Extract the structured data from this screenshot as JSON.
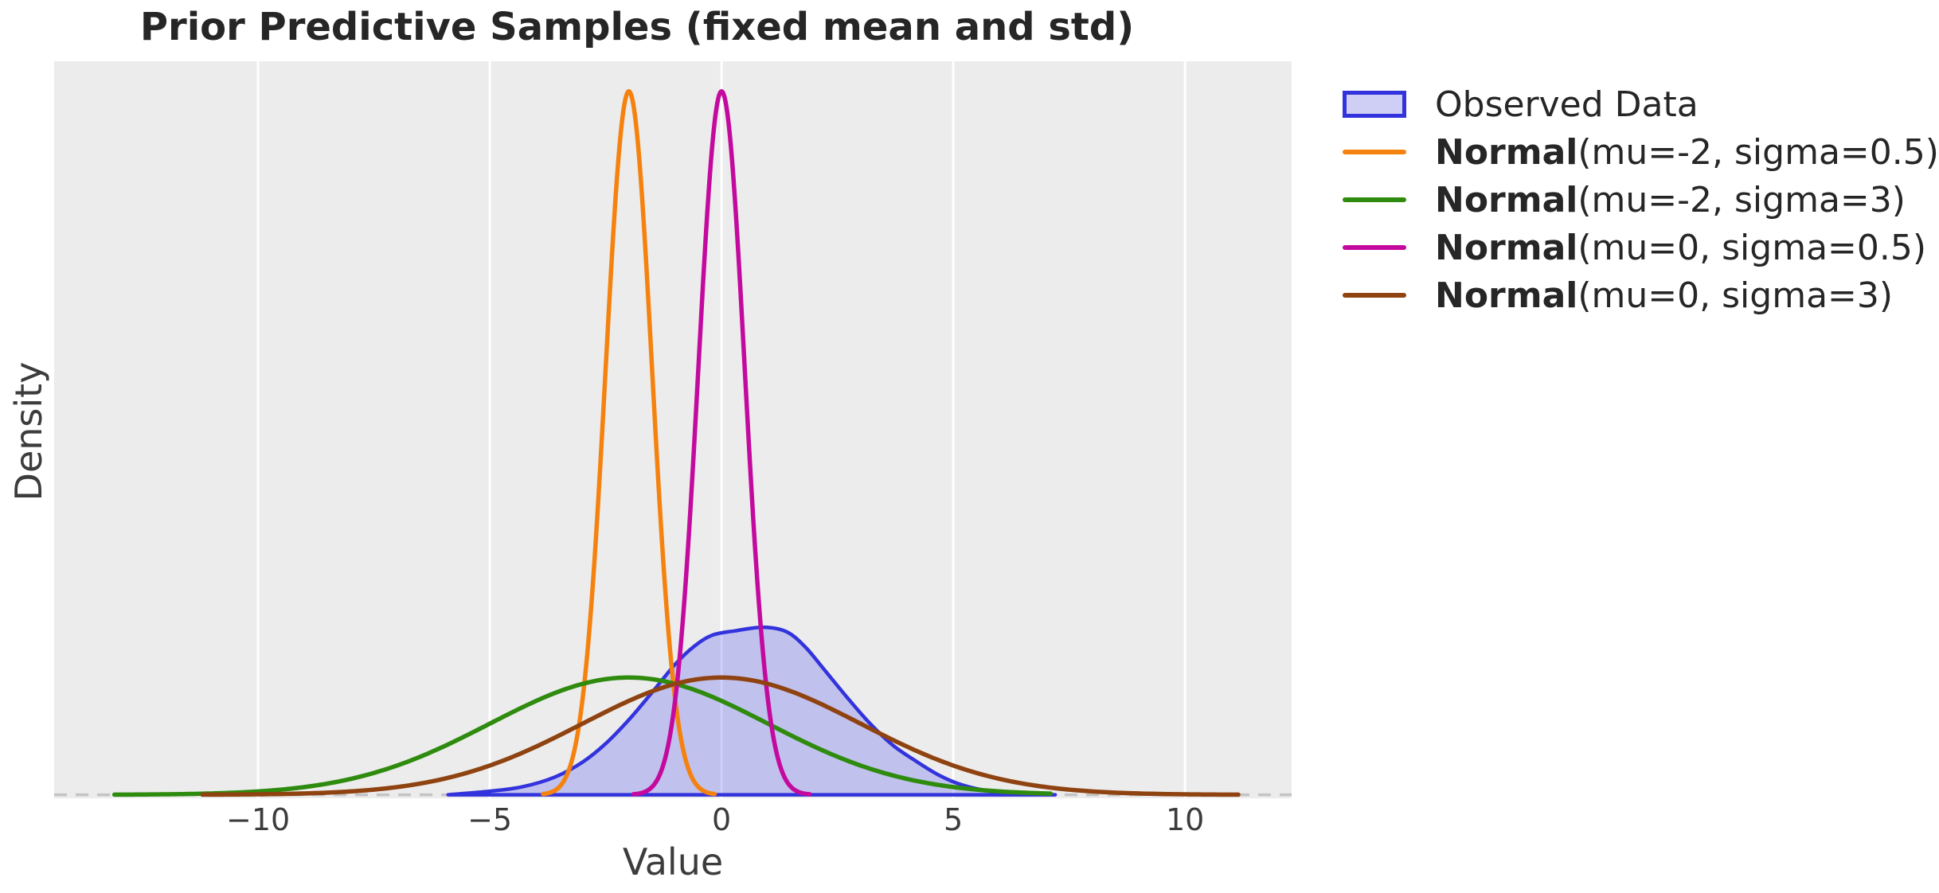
{
  "chart_data": {
    "type": "area",
    "title": "Prior Predictive Samples (fixed mean and std)",
    "xlabel": "Value",
    "ylabel": "Density",
    "xlim": [
      -14.4,
      12.3
    ],
    "ylim": [
      -0.004,
      0.832
    ],
    "x_ticks": {
      "values": [
        -10,
        -5,
        0,
        5,
        10
      ],
      "labels": [
        "−10",
        "−5",
        "0",
        "5",
        "10"
      ]
    },
    "grid": {
      "vertical": true,
      "horizontal": false,
      "color": "#ffffff"
    },
    "plot_bg": "#ececec",
    "baseline": {
      "y": 0,
      "style": "dashed",
      "color": "#c4c4c4"
    },
    "observed": {
      "label": "Observed Data",
      "kind": "kde-filled",
      "line_color": "#3333dd",
      "fill_color": "rgba(64,64,240,0.25)",
      "points": [
        [
          -5.9,
          0
        ],
        [
          -5.0,
          0.004
        ],
        [
          -4.3,
          0.009
        ],
        [
          -3.6,
          0.02
        ],
        [
          -3.0,
          0.037
        ],
        [
          -2.5,
          0.058
        ],
        [
          -2.0,
          0.085
        ],
        [
          -1.5,
          0.116
        ],
        [
          -1.0,
          0.148
        ],
        [
          -0.6,
          0.168
        ],
        [
          -0.2,
          0.181
        ],
        [
          0.3,
          0.186
        ],
        [
          0.9,
          0.19
        ],
        [
          1.4,
          0.185
        ],
        [
          1.8,
          0.168
        ],
        [
          2.2,
          0.143
        ],
        [
          2.7,
          0.111
        ],
        [
          3.2,
          0.081
        ],
        [
          3.7,
          0.056
        ],
        [
          4.2,
          0.038
        ],
        [
          4.7,
          0.022
        ],
        [
          5.2,
          0.011
        ],
        [
          5.8,
          0.004
        ],
        [
          6.5,
          0.001
        ],
        [
          7.2,
          0
        ]
      ]
    },
    "series": [
      {
        "name": "Normal(mu=-2, sigma=0.5)",
        "mu": -2,
        "sigma": 0.5,
        "color": "#f5820f",
        "x_range": [
          -3.85,
          -0.15
        ],
        "peak_density": 0.798
      },
      {
        "name": "Normal(mu=-2, sigma=3)",
        "mu": -2,
        "sigma": 3,
        "color": "#2e8b0e",
        "x_range": [
          -13.1,
          7.1
        ],
        "peak_density": 0.133
      },
      {
        "name": "Normal(mu=0, sigma=0.5)",
        "mu": 0,
        "sigma": 0.5,
        "color": "#c40a9e",
        "x_range": [
          -1.9,
          1.9
        ],
        "peak_density": 0.798
      },
      {
        "name": "Normal(mu=0, sigma=3)",
        "mu": 0,
        "sigma": 3,
        "color": "#8f4311",
        "x_range": [
          -11.2,
          11.15
        ],
        "peak_density": 0.133
      }
    ],
    "legend_position": "outside-right"
  },
  "legend": {
    "items": [
      {
        "key": "patch",
        "border_color": "#3333dd",
        "fill_color": "#cfcff5",
        "label_parts": [
          {
            "text": "Observed Data",
            "bold": false
          }
        ]
      },
      {
        "key": "line",
        "color": "#f5820f",
        "label_parts": [
          {
            "text": "Normal",
            "bold": true
          },
          {
            "text": "(mu=-2, sigma=0.5)",
            "bold": false
          }
        ]
      },
      {
        "key": "line",
        "color": "#2e8b0e",
        "label_parts": [
          {
            "text": "Normal",
            "bold": true
          },
          {
            "text": "(mu=-2, sigma=3)",
            "bold": false
          }
        ]
      },
      {
        "key": "line",
        "color": "#c40a9e",
        "label_parts": [
          {
            "text": "Normal",
            "bold": true
          },
          {
            "text": "(mu=0, sigma=0.5)",
            "bold": false
          }
        ]
      },
      {
        "key": "line",
        "color": "#8f4311",
        "label_parts": [
          {
            "text": "Normal",
            "bold": true
          },
          {
            "text": "(mu=0, sigma=3)",
            "bold": false
          }
        ]
      }
    ]
  }
}
